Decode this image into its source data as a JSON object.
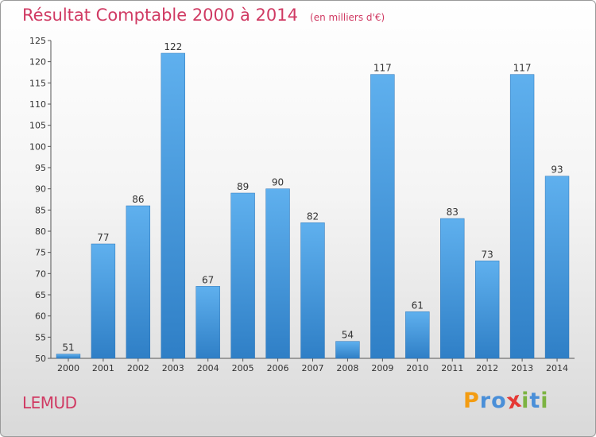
{
  "chart_data": {
    "type": "bar",
    "title": "Résultat Comptable 2000 à 2014",
    "subtitle": "(en milliers d'€)",
    "categories": [
      "2000",
      "2001",
      "2002",
      "2003",
      "2004",
      "2005",
      "2006",
      "2007",
      "2008",
      "2009",
      "2010",
      "2011",
      "2012",
      "2013",
      "2014"
    ],
    "values": [
      51,
      77,
      86,
      122,
      67,
      89,
      90,
      82,
      54,
      117,
      61,
      83,
      73,
      117,
      93
    ],
    "ylim": [
      50,
      125
    ],
    "yticks": [
      50,
      55,
      60,
      65,
      70,
      75,
      80,
      85,
      90,
      95,
      100,
      105,
      110,
      115,
      120,
      125
    ],
    "xlabel": "",
    "ylabel": "",
    "grid": false,
    "bar_color": "#4a9ee3"
  },
  "commune": "LEMUD",
  "logo": {
    "letters": [
      "P",
      "r",
      "o",
      "x",
      "i",
      "t",
      "i"
    ],
    "colors": [
      "#f39c12",
      "#4a8fd8",
      "#4a8fd8",
      "#e53935",
      "#7cb342",
      "#4a8fd8",
      "#7cb342"
    ]
  }
}
